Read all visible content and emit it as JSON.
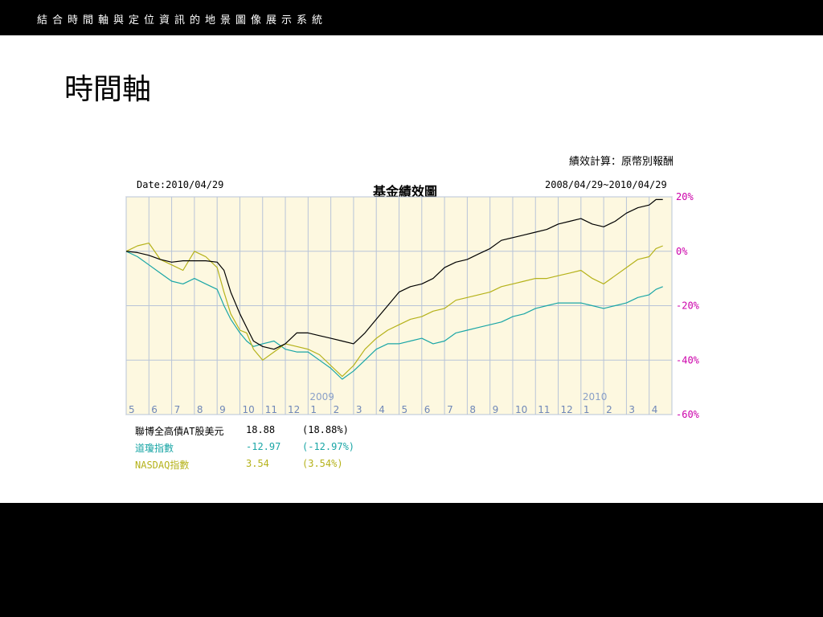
{
  "header": {
    "title": "結合時間軸與定位資訊的地景圖像展示系統"
  },
  "page": {
    "title": "時間軸"
  },
  "chart_data": {
    "type": "line",
    "title": "基金績效圖",
    "calc_label": "績效計算：原幣別報酬",
    "date_label": "Date:2010/04/29",
    "range_label": "2008/04/29~2010/04/29",
    "ylim": [
      -60,
      20
    ],
    "yticks": [
      20,
      0,
      -20,
      -40,
      -60
    ],
    "ytick_labels": [
      "20%",
      "0%",
      "-20%",
      "-40%",
      "-60%"
    ],
    "xlim": [
      0,
      24
    ],
    "xticks": [
      {
        "x": 0,
        "label": "5"
      },
      {
        "x": 1,
        "label": "6"
      },
      {
        "x": 2,
        "label": "7"
      },
      {
        "x": 3,
        "label": "8"
      },
      {
        "x": 4,
        "label": "9"
      },
      {
        "x": 5,
        "label": "10"
      },
      {
        "x": 6,
        "label": "11"
      },
      {
        "x": 7,
        "label": "12"
      },
      {
        "x": 8,
        "label": "1"
      },
      {
        "x": 9,
        "label": "2"
      },
      {
        "x": 10,
        "label": "3"
      },
      {
        "x": 11,
        "label": "4"
      },
      {
        "x": 12,
        "label": "5"
      },
      {
        "x": 13,
        "label": "6"
      },
      {
        "x": 14,
        "label": "7"
      },
      {
        "x": 15,
        "label": "8"
      },
      {
        "x": 16,
        "label": "9"
      },
      {
        "x": 17,
        "label": "10"
      },
      {
        "x": 18,
        "label": "11"
      },
      {
        "x": 19,
        "label": "12"
      },
      {
        "x": 20,
        "label": "1"
      },
      {
        "x": 21,
        "label": "2"
      },
      {
        "x": 22,
        "label": "3"
      },
      {
        "x": 23,
        "label": "4"
      }
    ],
    "year_labels": [
      {
        "x": 8,
        "label": "2009"
      },
      {
        "x": 20,
        "label": "2010"
      }
    ],
    "grid": true,
    "background": "#fdf8e0",
    "series": [
      {
        "name": "聯博全高債AT股美元",
        "color": "#000000",
        "last_value": "18.88",
        "last_pct": "(18.88%)",
        "x": [
          0,
          0.5,
          1,
          1.5,
          2,
          2.5,
          3,
          3.5,
          4,
          4.3,
          4.6,
          5,
          5.3,
          5.6,
          6,
          6.5,
          7,
          7.5,
          8,
          8.5,
          9,
          9.5,
          10,
          10.5,
          11,
          11.5,
          12,
          12.5,
          13,
          13.5,
          14,
          14.5,
          15,
          15.5,
          16,
          16.5,
          17,
          17.5,
          18,
          18.5,
          19,
          19.5,
          20,
          20.5,
          21,
          21.5,
          22,
          22.5,
          23,
          23.3,
          23.6
        ],
        "y": [
          0,
          -0.5,
          -1.5,
          -3,
          -4,
          -3.5,
          -3.5,
          -3.5,
          -4,
          -7,
          -15,
          -23,
          -28,
          -33,
          -35,
          -36,
          -34,
          -30,
          -30,
          -31,
          -32,
          -33,
          -34,
          -30,
          -25,
          -20,
          -15,
          -13,
          -12,
          -10,
          -6,
          -4,
          -3,
          -1,
          1,
          4,
          5,
          6,
          7,
          8,
          10,
          11,
          12,
          10,
          9,
          11,
          14,
          16,
          17,
          19,
          19
        ]
      },
      {
        "name": "道瓊指數",
        "color": "#1aa6a6",
        "last_value": "-12.97",
        "last_pct": "(-12.97%)",
        "x": [
          0,
          0.5,
          1,
          1.5,
          2,
          2.5,
          3,
          3.5,
          4,
          4.3,
          4.6,
          5,
          5.3,
          5.6,
          6,
          6.5,
          7,
          7.5,
          8,
          8.5,
          9,
          9.5,
          10,
          10.5,
          11,
          11.5,
          12,
          12.5,
          13,
          13.5,
          14,
          14.5,
          15,
          15.5,
          16,
          16.5,
          17,
          17.5,
          18,
          18.5,
          19,
          19.5,
          20,
          20.5,
          21,
          21.5,
          22,
          22.5,
          23,
          23.3,
          23.6
        ],
        "y": [
          0,
          -2,
          -5,
          -8,
          -11,
          -12,
          -10,
          -12,
          -14,
          -20,
          -25,
          -30,
          -33,
          -35,
          -34,
          -33,
          -36,
          -37,
          -37,
          -40,
          -43,
          -47,
          -44,
          -40,
          -36,
          -34,
          -34,
          -33,
          -32,
          -34,
          -33,
          -30,
          -29,
          -28,
          -27,
          -26,
          -24,
          -23,
          -21,
          -20,
          -19,
          -19,
          -19,
          -20,
          -21,
          -20,
          -19,
          -17,
          -16,
          -14,
          -13
        ]
      },
      {
        "name": "NASDAQ指數",
        "color": "#b5b21a",
        "last_value": "3.54",
        "last_pct": "(3.54%)",
        "x": [
          0,
          0.5,
          1,
          1.5,
          2,
          2.5,
          3,
          3.5,
          4,
          4.3,
          4.6,
          5,
          5.3,
          5.6,
          6,
          6.5,
          7,
          7.5,
          8,
          8.5,
          9,
          9.5,
          10,
          10.5,
          11,
          11.5,
          12,
          12.5,
          13,
          13.5,
          14,
          14.5,
          15,
          15.5,
          16,
          16.5,
          17,
          17.5,
          18,
          18.5,
          19,
          19.5,
          20,
          20.5,
          21,
          21.5,
          22,
          22.5,
          23,
          23.3,
          23.6
        ],
        "y": [
          0,
          2,
          3,
          -3,
          -5,
          -7,
          0,
          -2,
          -6,
          -15,
          -23,
          -29,
          -30,
          -36,
          -40,
          -37,
          -34,
          -35,
          -36,
          -38,
          -42,
          -46,
          -42,
          -36,
          -32,
          -29,
          -27,
          -25,
          -24,
          -22,
          -21,
          -18,
          -17,
          -16,
          -15,
          -13,
          -12,
          -11,
          -10,
          -10,
          -9,
          -8,
          -7,
          -10,
          -12,
          -9,
          -6,
          -3,
          -2,
          1,
          2
        ]
      }
    ]
  }
}
